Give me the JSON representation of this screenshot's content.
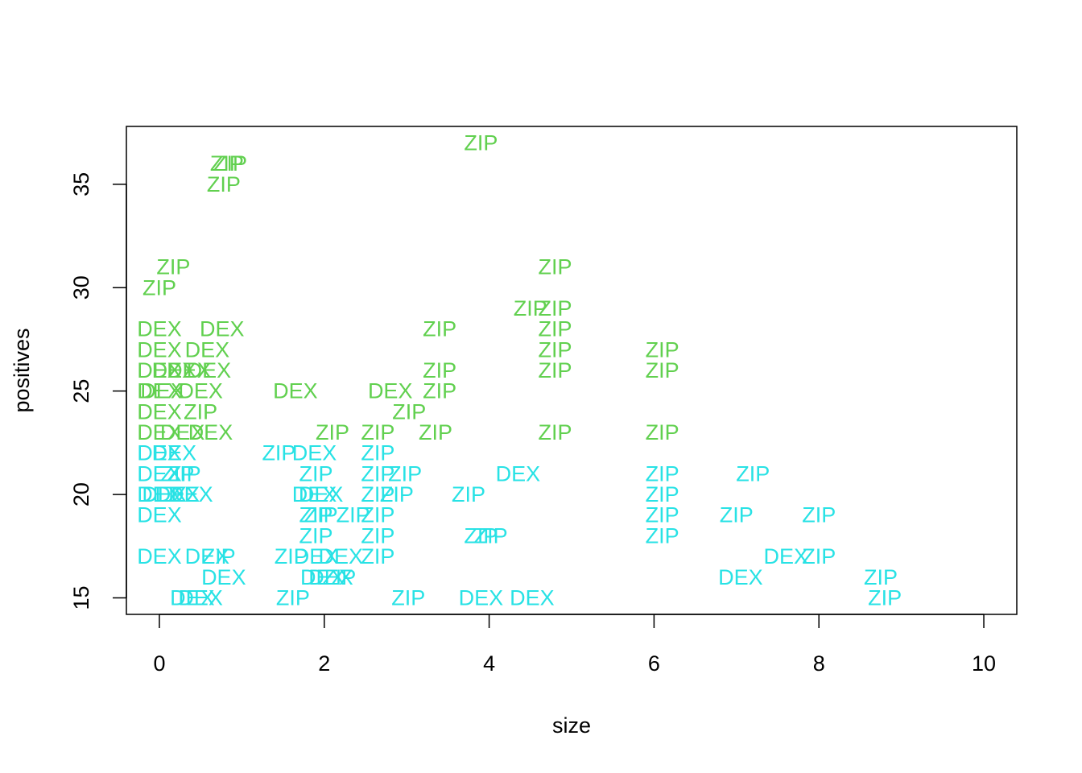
{
  "chart_data": {
    "type": "scatter",
    "marker": "text",
    "title": "",
    "xlabel": "size",
    "ylabel": "positives",
    "xlim": [
      -0.4,
      10.4
    ],
    "ylim": [
      14.2,
      37.8
    ],
    "grid": false,
    "legend": "none",
    "x_ticks": [
      "0",
      "2",
      "4",
      "6",
      "8",
      "10"
    ],
    "y_ticks": [
      "15",
      "20",
      "25",
      "30",
      "35"
    ],
    "colors": {
      "high": "#61d04f",
      "low": "#28e2e5",
      "threshold": 22.5
    },
    "points": [
      {
        "x": 3.9,
        "y": 37,
        "label": "ZIP"
      },
      {
        "x": 0.82,
        "y": 36,
        "label": "ZIP"
      },
      {
        "x": 0.86,
        "y": 36,
        "label": "ZIP"
      },
      {
        "x": 0.78,
        "y": 35,
        "label": "ZIP"
      },
      {
        "x": 0.17,
        "y": 31,
        "label": "ZIP"
      },
      {
        "x": 0.0,
        "y": 30,
        "label": "ZIP"
      },
      {
        "x": 4.8,
        "y": 31,
        "label": "ZIP"
      },
      {
        "x": 4.5,
        "y": 29,
        "label": "ZIP"
      },
      {
        "x": 4.8,
        "y": 29,
        "label": "ZIP"
      },
      {
        "x": 4.8,
        "y": 28,
        "label": "ZIP"
      },
      {
        "x": 4.8,
        "y": 27,
        "label": "ZIP"
      },
      {
        "x": 4.8,
        "y": 26,
        "label": "ZIP"
      },
      {
        "x": 0.0,
        "y": 28,
        "label": "DEX"
      },
      {
        "x": 0.76,
        "y": 28,
        "label": "DEX"
      },
      {
        "x": 3.4,
        "y": 28,
        "label": "ZIP"
      },
      {
        "x": 0.0,
        "y": 27,
        "label": "DEX"
      },
      {
        "x": 0.58,
        "y": 27,
        "label": "DEX"
      },
      {
        "x": 6.1,
        "y": 27,
        "label": "ZIP"
      },
      {
        "x": 0.0,
        "y": 26,
        "label": "DEX"
      },
      {
        "x": 0.18,
        "y": 26,
        "label": "DEX"
      },
      {
        "x": 0.36,
        "y": 26,
        "label": "DEX"
      },
      {
        "x": 0.6,
        "y": 26,
        "label": "DEX"
      },
      {
        "x": 3.4,
        "y": 26,
        "label": "ZIP"
      },
      {
        "x": 6.1,
        "y": 26,
        "label": "ZIP"
      },
      {
        "x": 0.0,
        "y": 25,
        "label": "DEX"
      },
      {
        "x": 0.04,
        "y": 25,
        "label": "DEX"
      },
      {
        "x": 0.5,
        "y": 25,
        "label": "DEX"
      },
      {
        "x": 1.65,
        "y": 25,
        "label": "DEX"
      },
      {
        "x": 2.8,
        "y": 25,
        "label": "DEX"
      },
      {
        "x": 3.4,
        "y": 25,
        "label": "ZIP"
      },
      {
        "x": 0.0,
        "y": 24,
        "label": "DEX"
      },
      {
        "x": 0.5,
        "y": 24,
        "label": "ZIP"
      },
      {
        "x": 3.03,
        "y": 24,
        "label": "ZIP"
      },
      {
        "x": 0.0,
        "y": 23,
        "label": "DEX"
      },
      {
        "x": 0.28,
        "y": 23,
        "label": "DEX"
      },
      {
        "x": 0.62,
        "y": 23,
        "label": "DEX"
      },
      {
        "x": 2.1,
        "y": 23,
        "label": "ZIP"
      },
      {
        "x": 2.65,
        "y": 23,
        "label": "ZIP"
      },
      {
        "x": 3.35,
        "y": 23,
        "label": "ZIP"
      },
      {
        "x": 4.8,
        "y": 23,
        "label": "ZIP"
      },
      {
        "x": 6.1,
        "y": 23,
        "label": "ZIP"
      },
      {
        "x": 0.0,
        "y": 22,
        "label": "DEX"
      },
      {
        "x": 0.18,
        "y": 22,
        "label": "DEX"
      },
      {
        "x": 1.45,
        "y": 22,
        "label": "ZIP"
      },
      {
        "x": 1.88,
        "y": 22,
        "label": "DEX"
      },
      {
        "x": 2.65,
        "y": 22,
        "label": "ZIP"
      },
      {
        "x": 0.0,
        "y": 21,
        "label": "DEX"
      },
      {
        "x": 0.22,
        "y": 21,
        "label": "ZIP"
      },
      {
        "x": 0.3,
        "y": 21,
        "label": "ZIP"
      },
      {
        "x": 1.9,
        "y": 21,
        "label": "ZIP"
      },
      {
        "x": 2.65,
        "y": 21,
        "label": "ZIP"
      },
      {
        "x": 2.98,
        "y": 21,
        "label": "ZIP"
      },
      {
        "x": 4.35,
        "y": 21,
        "label": "DEX"
      },
      {
        "x": 6.1,
        "y": 21,
        "label": "ZIP"
      },
      {
        "x": 7.2,
        "y": 21,
        "label": "ZIP"
      },
      {
        "x": 0.0,
        "y": 20,
        "label": "DEX"
      },
      {
        "x": 0.06,
        "y": 20,
        "label": "DEX"
      },
      {
        "x": 0.22,
        "y": 20,
        "label": "DEX"
      },
      {
        "x": 0.38,
        "y": 20,
        "label": "DEX"
      },
      {
        "x": 1.88,
        "y": 20,
        "label": "DEX"
      },
      {
        "x": 1.96,
        "y": 20,
        "label": "DEX"
      },
      {
        "x": 2.65,
        "y": 20,
        "label": "ZIP"
      },
      {
        "x": 2.88,
        "y": 20,
        "label": "ZIP"
      },
      {
        "x": 3.75,
        "y": 20,
        "label": "ZIP"
      },
      {
        "x": 6.1,
        "y": 20,
        "label": "ZIP"
      },
      {
        "x": 0.0,
        "y": 19,
        "label": "DEX"
      },
      {
        "x": 1.9,
        "y": 19,
        "label": "ZIP"
      },
      {
        "x": 1.96,
        "y": 19,
        "label": "ZIP"
      },
      {
        "x": 2.35,
        "y": 19,
        "label": "ZIP"
      },
      {
        "x": 2.65,
        "y": 19,
        "label": "ZIP"
      },
      {
        "x": 6.1,
        "y": 19,
        "label": "ZIP"
      },
      {
        "x": 7.0,
        "y": 19,
        "label": "ZIP"
      },
      {
        "x": 8.0,
        "y": 19,
        "label": "ZIP"
      },
      {
        "x": 1.9,
        "y": 18,
        "label": "ZIP"
      },
      {
        "x": 2.65,
        "y": 18,
        "label": "ZIP"
      },
      {
        "x": 3.9,
        "y": 18,
        "label": "ZIP"
      },
      {
        "x": 4.02,
        "y": 18,
        "label": "ZIP"
      },
      {
        "x": 6.1,
        "y": 18,
        "label": "ZIP"
      },
      {
        "x": 0.0,
        "y": 17,
        "label": "DEX"
      },
      {
        "x": 0.58,
        "y": 17,
        "label": "DEX"
      },
      {
        "x": 0.72,
        "y": 17,
        "label": "ZIP"
      },
      {
        "x": 1.6,
        "y": 17,
        "label": "ZIP"
      },
      {
        "x": 1.9,
        "y": 17,
        "label": "DEX"
      },
      {
        "x": 2.2,
        "y": 17,
        "label": "DEX"
      },
      {
        "x": 2.65,
        "y": 17,
        "label": "ZIP"
      },
      {
        "x": 7.6,
        "y": 17,
        "label": "DEX"
      },
      {
        "x": 8.0,
        "y": 17,
        "label": "ZIP"
      },
      {
        "x": 0.78,
        "y": 16,
        "label": "DEX"
      },
      {
        "x": 1.98,
        "y": 16,
        "label": "DEX"
      },
      {
        "x": 2.08,
        "y": 16,
        "label": "DEX"
      },
      {
        "x": 2.18,
        "y": 16,
        "label": "ZIP"
      },
      {
        "x": 7.05,
        "y": 16,
        "label": "DEX"
      },
      {
        "x": 8.75,
        "y": 16,
        "label": "ZIP"
      },
      {
        "x": 0.4,
        "y": 15,
        "label": "DEX"
      },
      {
        "x": 0.5,
        "y": 15,
        "label": "DEX"
      },
      {
        "x": 1.62,
        "y": 15,
        "label": "ZIP"
      },
      {
        "x": 3.02,
        "y": 15,
        "label": "ZIP"
      },
      {
        "x": 3.9,
        "y": 15,
        "label": "DEX"
      },
      {
        "x": 4.52,
        "y": 15,
        "label": "DEX"
      },
      {
        "x": 8.8,
        "y": 15,
        "label": "ZIP"
      }
    ]
  }
}
